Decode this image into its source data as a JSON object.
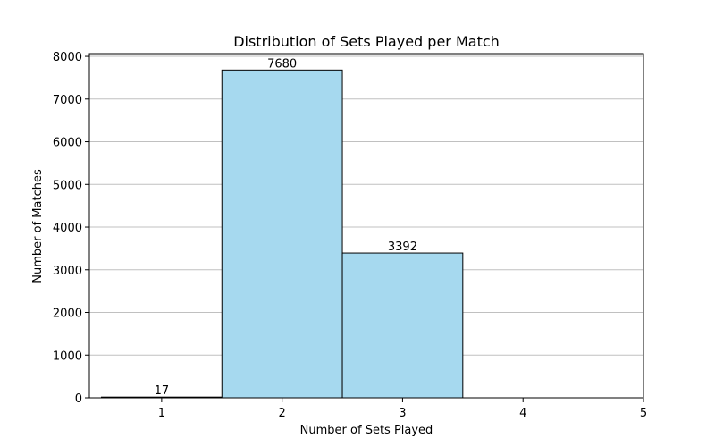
{
  "chart_data": {
    "type": "bar",
    "title": "Distribution of Sets Played per Match",
    "xlabel": "Number of Sets Played",
    "ylabel": "Number of Matches",
    "categories": [
      1,
      2,
      3
    ],
    "values": [
      17,
      7680,
      3392
    ],
    "value_labels": [
      "17",
      "7680",
      "3392"
    ],
    "xlim": [
      0.4,
      5
    ],
    "ylim": [
      0,
      8064
    ],
    "xticks": [
      1,
      2,
      3,
      4,
      5
    ],
    "xtick_labels": [
      "1",
      "2",
      "3",
      "4",
      "5"
    ],
    "yticks": [
      0,
      1000,
      2000,
      3000,
      4000,
      5000,
      6000,
      7000,
      8000
    ],
    "ytick_labels": [
      "0",
      "1000",
      "2000",
      "3000",
      "4000",
      "5000",
      "6000",
      "7000",
      "8000"
    ],
    "bar_width": 1,
    "grid": "y",
    "legend": "none",
    "colors": {
      "bar_fill": "#a6d9ef",
      "bar_edge": "#000000",
      "grid": "#c0c0c0",
      "axes": "#000000"
    }
  }
}
